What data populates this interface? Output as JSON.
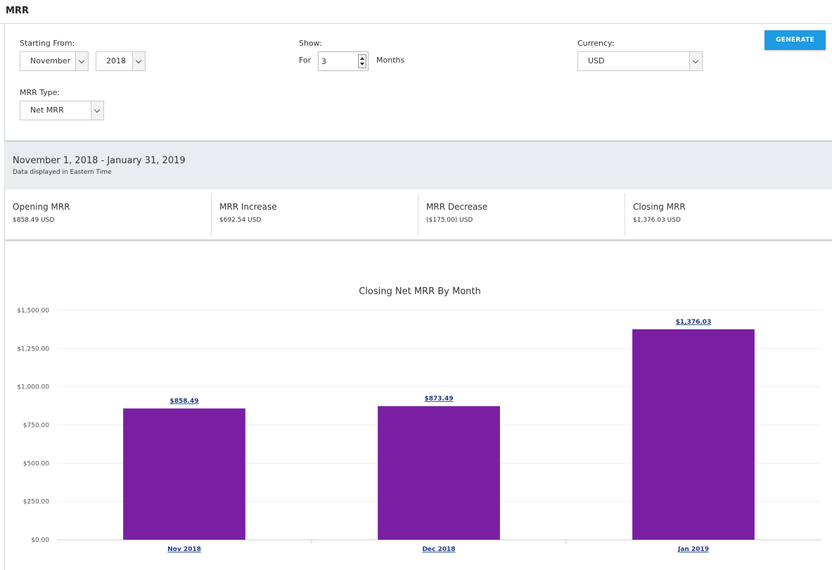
{
  "page": {
    "title": "MRR"
  },
  "form": {
    "starting_from_label": "Starting From:",
    "month_value": "November",
    "year_value": "2018",
    "show_label": "Show:",
    "for_label": "For",
    "months_count": "3",
    "months_label": "Months",
    "currency_label": "Currency:",
    "currency_value": "USD",
    "mrr_type_label": "MRR Type:",
    "mrr_type_value": "Net MRR",
    "generate_label": "GENERATE"
  },
  "range": {
    "title": "November 1, 2018 - January 31, 2019",
    "subtitle": "Data displayed in Eastern Time"
  },
  "summary": [
    {
      "label": "Opening MRR",
      "value": "$858.49 USD"
    },
    {
      "label": "MRR Increase",
      "value": "$692.54 USD"
    },
    {
      "label": "MRR Decrease",
      "value": "($175.00) USD"
    },
    {
      "label": "Closing MRR",
      "value": "$1,376.03 USD"
    }
  ],
  "colors": {
    "bar": "#7b1fa2",
    "accent": "#1e9be2",
    "link": "#1f3a8a"
  },
  "chart_data": {
    "type": "bar",
    "title": "Closing Net MRR By Month",
    "categories": [
      "Nov 2018",
      "Dec 2018",
      "Jan 2019"
    ],
    "values": [
      858.49,
      873.49,
      1376.03
    ],
    "value_labels": [
      "$858.49",
      "$873.49",
      "$1,376.03"
    ],
    "y_ticks": [
      0,
      250,
      500,
      750,
      1000,
      1250,
      1500
    ],
    "y_tick_labels": [
      "$0.00",
      "$250.00",
      "$500.00",
      "$750.00",
      "$1,000.00",
      "$1,250.00",
      "$1,500.00"
    ],
    "ylim": [
      0,
      1500
    ],
    "xlabel": "",
    "ylabel": "",
    "grid": true
  }
}
